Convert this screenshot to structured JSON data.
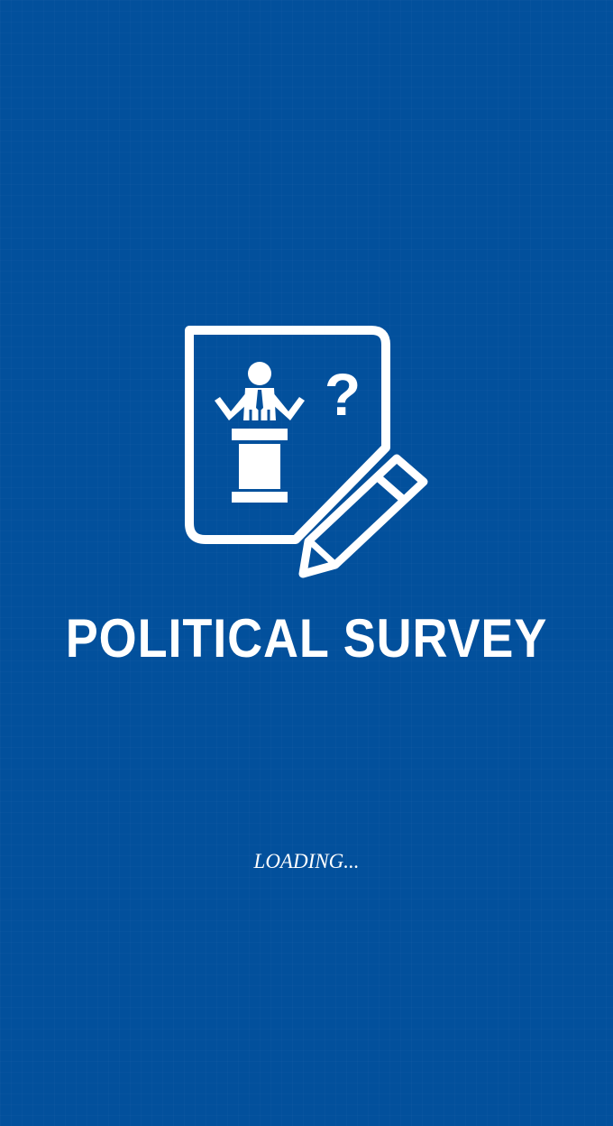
{
  "splash": {
    "logo_icon": "survey-podium-pencil-icon",
    "logo_question_mark": "?",
    "title": "POLITICAL SURVEY",
    "loading_text": "LOADING..."
  },
  "colors": {
    "background": "#02509c",
    "foreground": "#ffffff"
  }
}
